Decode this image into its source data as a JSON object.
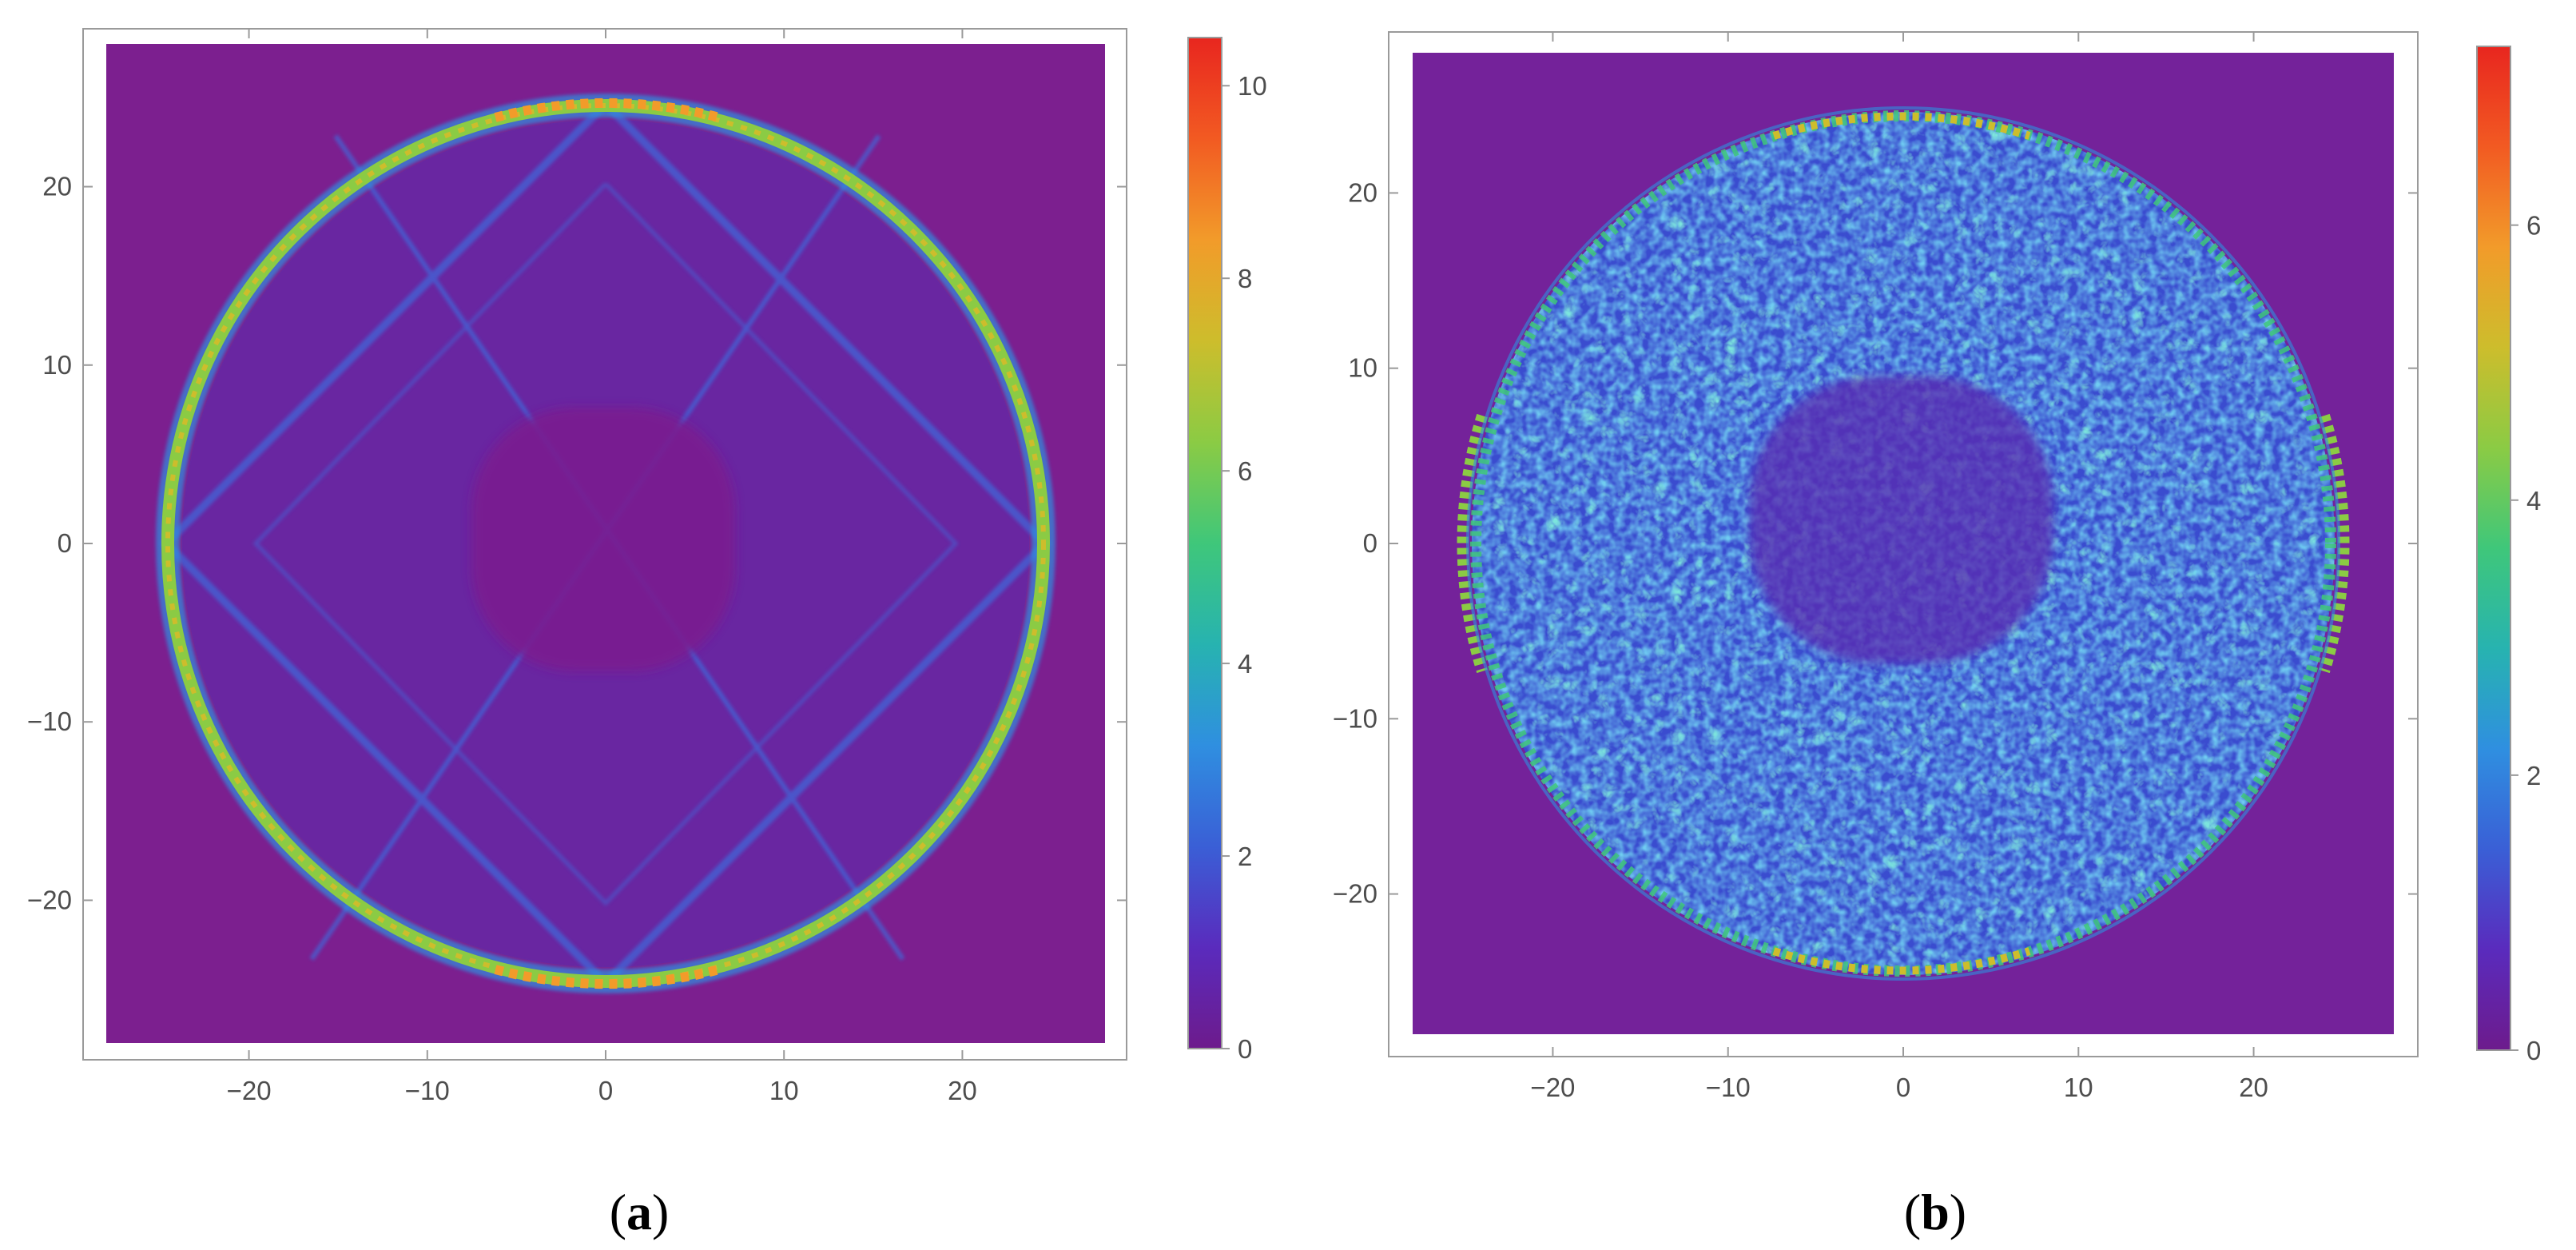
{
  "figure": {
    "panel_labels": [
      {
        "open": "(",
        "letter": "a",
        "close": ")"
      },
      {
        "open": "(",
        "letter": "b",
        "close": ")"
      }
    ]
  },
  "palette": {
    "background": "#7c1f8f",
    "colorbar_stops": [
      "#6d1b8c",
      "#5a2bbd",
      "#3a5fd6",
      "#2f8fe0",
      "#27b3b0",
      "#3fc77a",
      "#8bcb44",
      "#cdbd2c",
      "#f29b2a",
      "#f25a22",
      "#e8261f"
    ]
  },
  "chart_data": [
    {
      "type": "heatmap",
      "panel": "a",
      "title": "",
      "xlabel": "",
      "ylabel": "",
      "xlim": [
        -28,
        28
      ],
      "ylim": [
        -28,
        28
      ],
      "x_ticks": [
        -20,
        -10,
        0,
        10,
        20
      ],
      "y_ticks": [
        20,
        10,
        0,
        -10,
        -20
      ],
      "x_tick_labels": [
        "−20",
        "−10",
        "0",
        "10",
        "20"
      ],
      "y_tick_labels": [
        "20",
        "10",
        "0",
        "−10",
        "−20"
      ],
      "colorbar": {
        "min": 0,
        "max": 10.5,
        "ticks": [
          0,
          2,
          4,
          6,
          8,
          10
        ],
        "tick_labels": [
          "0",
          "2",
          "4",
          "6",
          "8",
          "10"
        ]
      },
      "features": {
        "ring_radius": 24.5,
        "ring_peak_value": 9,
        "ring_top_bottom_peak_value": 10,
        "inner_diamond_half_diagonal": 16.5,
        "inner_lines_value": 2.5,
        "central_region_value": 0,
        "outside_value": 0
      }
    },
    {
      "type": "heatmap",
      "panel": "b",
      "title": "",
      "xlabel": "",
      "ylabel": "",
      "xlim": [
        -28,
        28
      ],
      "ylim": [
        -28,
        28
      ],
      "x_ticks": [
        -20,
        -10,
        0,
        10,
        20
      ],
      "y_ticks": [
        20,
        10,
        0,
        -10,
        -20
      ],
      "x_tick_labels": [
        "−20",
        "−10",
        "0",
        "10",
        "20"
      ],
      "y_tick_labels": [
        "20",
        "10",
        "0",
        "−10",
        "−20"
      ],
      "colorbar": {
        "min": 0,
        "max": 7.3,
        "ticks": [
          0,
          2,
          4,
          6
        ],
        "tick_labels": [
          "0",
          "2",
          "4",
          "6"
        ]
      },
      "features": {
        "disk_radius": 24.5,
        "ring_peak_value": 5,
        "interior_speckle_value": 2.5,
        "central_region_value": 0.6,
        "outside_value": 0.2
      }
    }
  ]
}
